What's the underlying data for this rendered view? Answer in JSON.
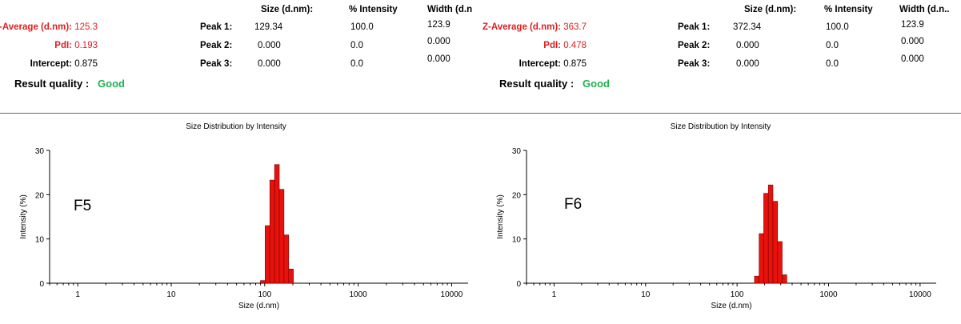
{
  "panels": [
    {
      "z_average_label": "Z-Average (d.nm):",
      "z_average_value": "125.3",
      "pdi_label": "PdI:",
      "pdi_value": "0.193",
      "intercept_label": "Intercept:",
      "intercept_value": "0.875",
      "col_size": "Size (d.nm):",
      "col_intensity": "% Intensity",
      "col_width": "Width (d.n",
      "peaks": [
        {
          "label": "Peak 1:",
          "size": "129.34",
          "intensity": "100.0",
          "width": "123.9"
        },
        {
          "label": "Peak 2:",
          "size": "0.000",
          "intensity": "0.0",
          "width": "0.000"
        },
        {
          "label": "Peak 3:",
          "size": "0.000",
          "intensity": "0.0",
          "width": "0.000"
        }
      ],
      "result_quality_label": "Result quality :",
      "result_quality_value": "Good",
      "sample_label": "F5"
    },
    {
      "z_average_label": "Z-Average (d.nm):",
      "z_average_value": "363.7",
      "pdi_label": "PdI:",
      "pdi_value": "0.478",
      "intercept_label": "Intercept:",
      "intercept_value": "0.875",
      "col_size": "Size (d.nm):",
      "col_intensity": "% Intensity",
      "col_width": "Width (d.n..",
      "peaks": [
        {
          "label": "Peak 1:",
          "size": "372.34",
          "intensity": "100.0",
          "width": "123.9"
        },
        {
          "label": "Peak 2:",
          "size": "0.000",
          "intensity": "0.0",
          "width": "0.000"
        },
        {
          "label": "Peak 3:",
          "size": "0.000",
          "intensity": "0.0",
          "width": "0.000"
        }
      ],
      "result_quality_label": "Result quality :",
      "result_quality_value": "Good",
      "sample_label": "F6"
    }
  ],
  "colors": {
    "bar_fill": "#e8120c",
    "bar_stroke": "#7a0000",
    "good": "#22b14c",
    "red_text": "#e01e1e"
  },
  "chart_data": [
    {
      "type": "bar",
      "title": "Size Distribution by Intensity",
      "xlabel": "Size (d.nm)",
      "ylabel": "Intensity (%)",
      "x_scale": "log",
      "xlim": [
        0.5,
        15000
      ],
      "ylim": [
        0,
        30
      ],
      "x_ticks": [
        "1",
        "10",
        "100",
        "1000",
        "10000"
      ],
      "y_ticks": [
        "0",
        "10",
        "20",
        "30"
      ],
      "bins": [
        {
          "x0": 90.0,
          "x1": 101.1,
          "value": 0.6
        },
        {
          "x0": 101.1,
          "x1": 113.5,
          "value": 13.0
        },
        {
          "x0": 113.5,
          "x1": 127.5,
          "value": 23.3
        },
        {
          "x0": 127.5,
          "x1": 143.2,
          "value": 26.8
        },
        {
          "x0": 143.2,
          "x1": 160.8,
          "value": 21.2
        },
        {
          "x0": 160.8,
          "x1": 180.6,
          "value": 10.9
        },
        {
          "x0": 180.6,
          "x1": 202.8,
          "value": 3.2
        }
      ]
    },
    {
      "type": "bar",
      "title": "Size Distribution by Intensity",
      "xlabel": "Size (d.nm)",
      "ylabel": "Intensity (%)",
      "x_scale": "log",
      "xlim": [
        0.5,
        15000
      ],
      "ylim": [
        0,
        30
      ],
      "x_ticks": [
        "1",
        "10",
        "100",
        "1000",
        "10000"
      ],
      "y_ticks": [
        "0",
        "10",
        "20",
        "30"
      ],
      "bins": [
        {
          "x0": 155.0,
          "x1": 174.1,
          "value": 1.6
        },
        {
          "x0": 174.1,
          "x1": 195.5,
          "value": 11.2
        },
        {
          "x0": 195.5,
          "x1": 219.6,
          "value": 20.3
        },
        {
          "x0": 219.6,
          "x1": 246.6,
          "value": 22.2
        },
        {
          "x0": 246.6,
          "x1": 277.0,
          "value": 18.5
        },
        {
          "x0": 277.0,
          "x1": 311.1,
          "value": 9.4
        },
        {
          "x0": 311.1,
          "x1": 349.4,
          "value": 1.9
        }
      ]
    }
  ]
}
